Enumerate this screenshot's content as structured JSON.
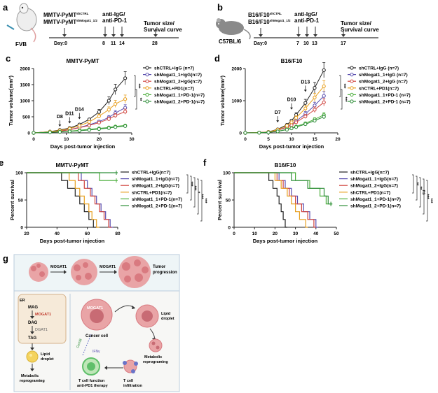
{
  "panels": {
    "a": {
      "letter": "a",
      "strain_line1": "MMTV-PyMT",
      "sup1": "shCTRL",
      "strain_line2": "MMTV-PyMT",
      "sup2": "shMogat1_1/2",
      "treatment": "anti-IgG/",
      "treatment2": "anti-PD-1",
      "outcome1": "Tumor size/",
      "outcome2": "Survival curve",
      "mouse_label": "FVB",
      "day_label": "Day:0",
      "days": [
        "8",
        "11",
        "14",
        "28"
      ]
    },
    "b": {
      "letter": "b",
      "strain_line1": "B16/F10",
      "sup1": "shCTRL",
      "strain_line2": "B16/F10",
      "sup2": "shMogat1_1/2",
      "treatment": "anti-IgG/",
      "treatment2": "anti-PD-1",
      "outcome1": "Tumor size/",
      "outcome2": "Survival curve",
      "mouse_label": "C57BL/6",
      "day_label": "Day:0",
      "days": [
        "7",
        "10",
        "13",
        "17"
      ]
    },
    "g": {
      "letter": "g",
      "mogat1_a": "MOGAT1",
      "mogat1_b": "MOGAT1",
      "progression1": "Tumor",
      "progression2": "progression",
      "er": "ER",
      "mag": "MAG",
      "mogat1_c": "MOGAT1",
      "dag": "DAG",
      "dgat1": "DGAT1",
      "tag": "TAG",
      "lipid1": "Lipid",
      "droplet1": "droplet",
      "metabolic1": "Metabolic",
      "reprog1": "reprograming",
      "mogat1_cell": "MOGAT1",
      "cancer_cell": "Cancer cell",
      "lipid2": "Lipid",
      "droplet2": "droplet",
      "metabolic2": "Metabolic",
      "reprog2": "reprograming",
      "gzmb": "GzmB",
      "ifng": "IFNγ",
      "tcell1": "T cell function",
      "tcell2": "anti-PD1 therapy",
      "infil1": "T cell",
      "infil2": "infiltration"
    }
  },
  "legend_labels": {
    "tumor_c": [
      "shCTRL+IgG (n=7)",
      "shMogat1_1+IgG(n=7)",
      "shMogat1_2+IgG(n=7)",
      "shCTRL+PD1(n=7)",
      "shMogat1_1+PD-1(n=7)",
      "shMogat1_2+PD-1(n=7)"
    ],
    "tumor_d": [
      "shCTRL+IgG (n=7)",
      "shMogat1_1+IgG (n=7)",
      "shMogat1_2+IgG (n=7)",
      "shCTRL+PD1(n=7)",
      "shMogat1_1+PD-1 (n=7)",
      "shMogat1_2+PD-1 (n=7)"
    ],
    "surv_e": [
      "shCTRL+IgG(n=7)",
      "shMogat1_1+IgG(n=7)",
      "shMogat1_2+IgG(n=7)",
      "shCTRL+PD1(n=7)",
      "shMogat1_1+PD-1(n=7)",
      "shMogat1_2+PD-1(n=7)"
    ],
    "surv_f": [
      "shCTRL+IgG(n=7)",
      "shMogat1_1+IgG(n=7)",
      "shMogat1_2+IgG(n=7)",
      "shCTRL+PD1(n=7)",
      "shMogat1_1+PD-1(n=7)",
      "shMogat1_2+PD-1(n=7)"
    ]
  },
  "colors": {
    "shCTRL_IgG": "#222222",
    "shMogat1_1_IgG": "#5a4fb0",
    "shMogat1_2_IgG": "#d0443e",
    "shCTRL_PD1": "#e8a020",
    "shMogat1_1_PD1": "#4cae3c",
    "shMogat1_2_PD1": "#2f8f3a"
  },
  "chart_data": [
    {
      "id": "c",
      "letter": "c",
      "type": "line",
      "title": "MMTV-PyMT",
      "xlabel": "Days post-tumor injection",
      "ylabel": "Tumor volume(mm³)",
      "xlim": [
        0,
        30
      ],
      "ylim": [
        0,
        2000
      ],
      "xticks": [
        "0",
        "10",
        "20",
        "30"
      ],
      "yticks": [
        "0",
        "500",
        "1000",
        "1500",
        "2000"
      ],
      "x": [
        0,
        5,
        8,
        11,
        14,
        17,
        20,
        23,
        25,
        28
      ],
      "series": [
        {
          "name": "shCTRL+IgG (n=7)",
          "values": [
            0,
            40,
            90,
            150,
            260,
            420,
            650,
            1000,
            1350,
            1700
          ]
        },
        {
          "name": "shMogat1_1+IgG(n=7)",
          "values": [
            0,
            30,
            60,
            100,
            170,
            250,
            350,
            480,
            620,
            780
          ]
        },
        {
          "name": "shMogat1_2+IgG(n=7)",
          "values": [
            0,
            30,
            55,
            95,
            160,
            230,
            320,
            430,
            540,
            660
          ]
        },
        {
          "name": "shCTRL+PD1(n=7)",
          "values": [
            0,
            35,
            75,
            130,
            220,
            340,
            520,
            720,
            900,
            1050
          ]
        },
        {
          "name": "shMogat1_1+PD-1(n=7)",
          "values": [
            0,
            20,
            35,
            55,
            80,
            110,
            140,
            170,
            200,
            230
          ]
        },
        {
          "name": "shMogat1_2+PD-1(n=7)",
          "values": [
            0,
            20,
            30,
            45,
            65,
            90,
            120,
            150,
            180,
            210
          ]
        }
      ],
      "annotations": [
        "D8",
        "D11",
        "D14"
      ],
      "annotation_x": [
        8,
        11,
        14
      ],
      "annotation_y": [
        150,
        250,
        380
      ],
      "significance": [
        "***",
        "**"
      ]
    },
    {
      "id": "d",
      "letter": "d",
      "type": "line",
      "title": "B16/F10",
      "xlabel": "Days post-tumor injection",
      "ylabel": "Tumor volume(mm³)",
      "xlim": [
        0,
        20
      ],
      "ylim": [
        0,
        2000
      ],
      "xticks": [
        "0",
        "5",
        "10",
        "15",
        "20"
      ],
      "yticks": [
        "0",
        "1000",
        "2000"
      ],
      "x": [
        0,
        3,
        5,
        7,
        9,
        10,
        11,
        13,
        15,
        17
      ],
      "series": [
        {
          "name": "shCTRL+IgG (n=7)",
          "values": [
            0,
            10,
            30,
            110,
            250,
            380,
            560,
            930,
            1400,
            1950
          ]
        },
        {
          "name": "shMogat1_1+IgG (n=7)",
          "values": [
            0,
            10,
            25,
            85,
            180,
            260,
            370,
            590,
            850,
            1150
          ]
        },
        {
          "name": "shMogat1_2+IgG (n=7)",
          "values": [
            0,
            10,
            25,
            80,
            170,
            240,
            330,
            510,
            720,
            950
          ]
        },
        {
          "name": "shCTRL+PD1(n=7)",
          "values": [
            0,
            10,
            25,
            100,
            220,
            330,
            470,
            760,
            1100,
            1450
          ]
        },
        {
          "name": "shMogat1_1+PD-1 (n=7)",
          "values": [
            0,
            5,
            15,
            50,
            110,
            150,
            200,
            300,
            420,
            560
          ]
        },
        {
          "name": "shMogat1_2+PD-1 (n=7)",
          "values": [
            0,
            5,
            15,
            45,
            100,
            140,
            180,
            270,
            380,
            500
          ]
        }
      ],
      "annotations": [
        "D7",
        "D10",
        "D13"
      ],
      "annotation_x": [
        7,
        10,
        13
      ],
      "annotation_y": [
        280,
        680,
        1230
      ],
      "significance": [
        "***",
        "***"
      ]
    },
    {
      "id": "e",
      "letter": "e",
      "type": "line",
      "subtype": "survival",
      "title": "MMTV-PyMT",
      "xlabel": "Days post-tumor injection",
      "ylabel": "Percent survival",
      "xlim": [
        20,
        80
      ],
      "ylim": [
        0,
        100
      ],
      "xticks": [
        "20",
        "40",
        "60",
        "80"
      ],
      "yticks": [
        "0",
        "50",
        "100"
      ],
      "series": [
        {
          "name": "shCTRL+IgG(n=7)",
          "times": [
            43,
            47,
            52,
            55,
            58,
            61,
            64
          ],
          "end": 66
        },
        {
          "name": "shMogat1_1+IgG(n=7)",
          "times": [
            56,
            60,
            63,
            66,
            69,
            72,
            75
          ],
          "end": 77
        },
        {
          "name": "shMogat1_2+IgG(n=7)",
          "times": [
            54,
            58,
            62,
            65,
            68,
            71,
            74
          ],
          "end": 76
        },
        {
          "name": "shCTRL+PD1(n=7)",
          "times": [
            48,
            52,
            55,
            58,
            61,
            63,
            66
          ],
          "end": 68
        },
        {
          "name": "shMogat1_1+PD-1(n=7)",
          "times": [
            68
          ],
          "end": 80
        },
        {
          "name": "shMogat1_2+PD-1(n=7)",
          "times": [],
          "end": 80
        }
      ],
      "significance": [
        "***",
        "***",
        "*",
        "***",
        "***"
      ]
    },
    {
      "id": "f",
      "letter": "f",
      "type": "line",
      "subtype": "survival",
      "title": "B16/F10",
      "xlabel": "Days post-tumor injection",
      "ylabel": "Percent survival",
      "xlim": [
        0,
        50
      ],
      "ylim": [
        0,
        100
      ],
      "xticks": [
        "0",
        "10",
        "20",
        "30",
        "40",
        "50"
      ],
      "yticks": [
        "0",
        "50",
        "100"
      ],
      "series": [
        {
          "name": "shCTRL+IgG(n=7)",
          "times": [
            17,
            19,
            21,
            22,
            23,
            24,
            25
          ],
          "end": 26
        },
        {
          "name": "shMogat1_1+IgG(n=7)",
          "times": [
            22,
            25,
            28,
            31,
            34,
            37,
            40
          ],
          "end": 41
        },
        {
          "name": "shMogat1_2+IgG(n=7)",
          "times": [
            21,
            24,
            27,
            30,
            33,
            36,
            39
          ],
          "end": 40
        },
        {
          "name": "shCTRL+PD1(n=7)",
          "times": [
            20,
            23,
            26,
            28,
            30,
            32,
            35
          ],
          "end": 36
        },
        {
          "name": "shMogat1_1+PD-1(n=7)",
          "times": [
            30,
            37,
            42,
            45
          ],
          "end": 48
        },
        {
          "name": "shMogat1_2+PD-1(n=7)",
          "times": [
            28,
            36,
            44,
            46
          ],
          "end": 48
        }
      ],
      "significance": [
        "**",
        "**",
        "ns",
        "***",
        "***"
      ]
    }
  ]
}
